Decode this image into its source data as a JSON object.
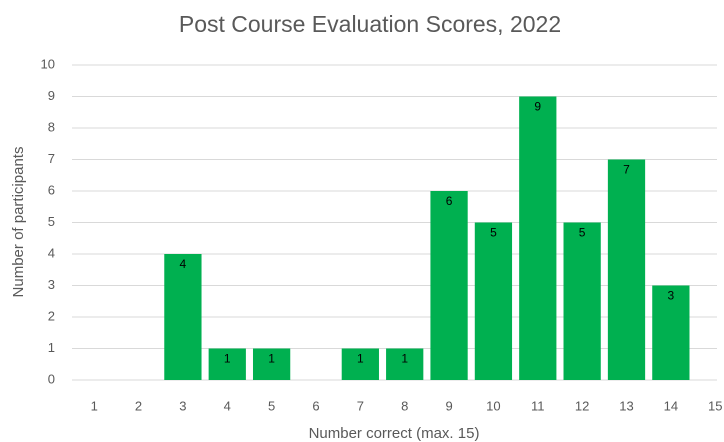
{
  "chart_data": {
    "type": "bar",
    "title": "Post Course Evaluation Scores, 2022",
    "x_label": "Number correct (max. 15)",
    "y_label": "Number of participants",
    "categories": [
      "1",
      "2",
      "3",
      "4",
      "5",
      "6",
      "7",
      "8",
      "9",
      "10",
      "11",
      "12",
      "13",
      "14",
      "15"
    ],
    "values": [
      0,
      0,
      4,
      1,
      1,
      0,
      1,
      1,
      6,
      5,
      9,
      5,
      7,
      3,
      0
    ],
    "color": "#00b050",
    "ylim": [
      0,
      10
    ],
    "yticks": [
      0,
      1,
      2,
      3,
      4,
      5,
      6,
      7,
      8,
      9,
      10
    ],
    "grid": true
  }
}
